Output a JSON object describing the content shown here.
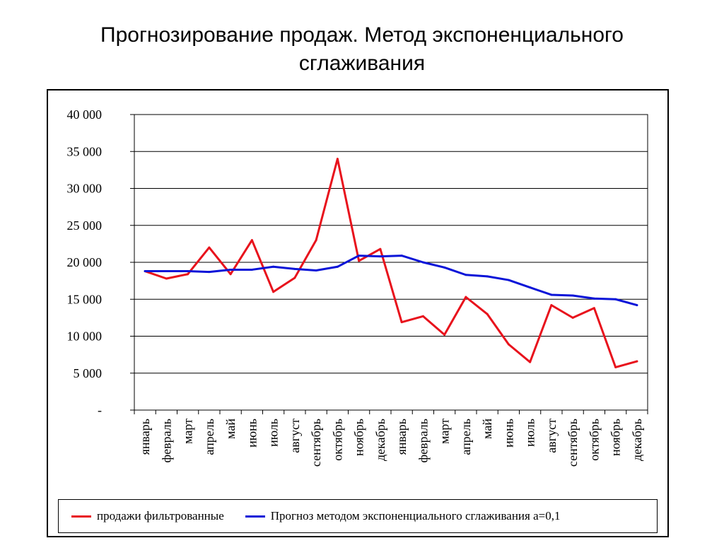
{
  "title": {
    "line1": "Прогнозирование продаж. Метод экспоненциального",
    "line2": "сглаживания"
  },
  "colors": {
    "sales": "#e8121c",
    "forecast": "#0a14d8"
  },
  "chart_data": {
    "type": "line",
    "title": "",
    "xlabel": "",
    "ylabel": "",
    "ylim": [
      0,
      40000
    ],
    "yticks": [
      0,
      5000,
      10000,
      15000,
      20000,
      25000,
      30000,
      35000,
      40000
    ],
    "ytick_labels": [
      "-",
      "5 000",
      "10 000",
      "15 000",
      "20 000",
      "25 000",
      "30 000",
      "35 000",
      "40 000"
    ],
    "grid": "horizontal",
    "legend": "bottom",
    "categories": [
      "январь",
      "февраль",
      "март",
      "апрель",
      "май",
      "июнь",
      "июль",
      "август",
      "сентябрь",
      "октябрь",
      "ноябрь",
      "декабрь",
      "январь",
      "февраль",
      "март",
      "апрель",
      "май",
      "июнь",
      "июль",
      "август",
      "сентябрь",
      "октябрь",
      "ноябрь",
      "декабрь"
    ],
    "series": [
      {
        "name": "продажи фильтрованные",
        "color": "#e8121c",
        "values": [
          18800,
          17800,
          18400,
          22000,
          18400,
          23000,
          16000,
          17900,
          23000,
          34000,
          20200,
          21800,
          11900,
          12700,
          10200,
          15300,
          13000,
          8900,
          6500,
          14200,
          12500,
          13800,
          5800,
          6600
        ]
      },
      {
        "name": "Прогноз методом экспоненциального сглаживания a=0,1",
        "color": "#0a14d8",
        "values": [
          18800,
          18800,
          18800,
          18700,
          19000,
          19000,
          19400,
          19100,
          18900,
          19400,
          20900,
          20800,
          20900,
          20000,
          19300,
          18300,
          18100,
          17600,
          16600,
          15600,
          15500,
          15100,
          15000,
          14200
        ]
      }
    ]
  }
}
